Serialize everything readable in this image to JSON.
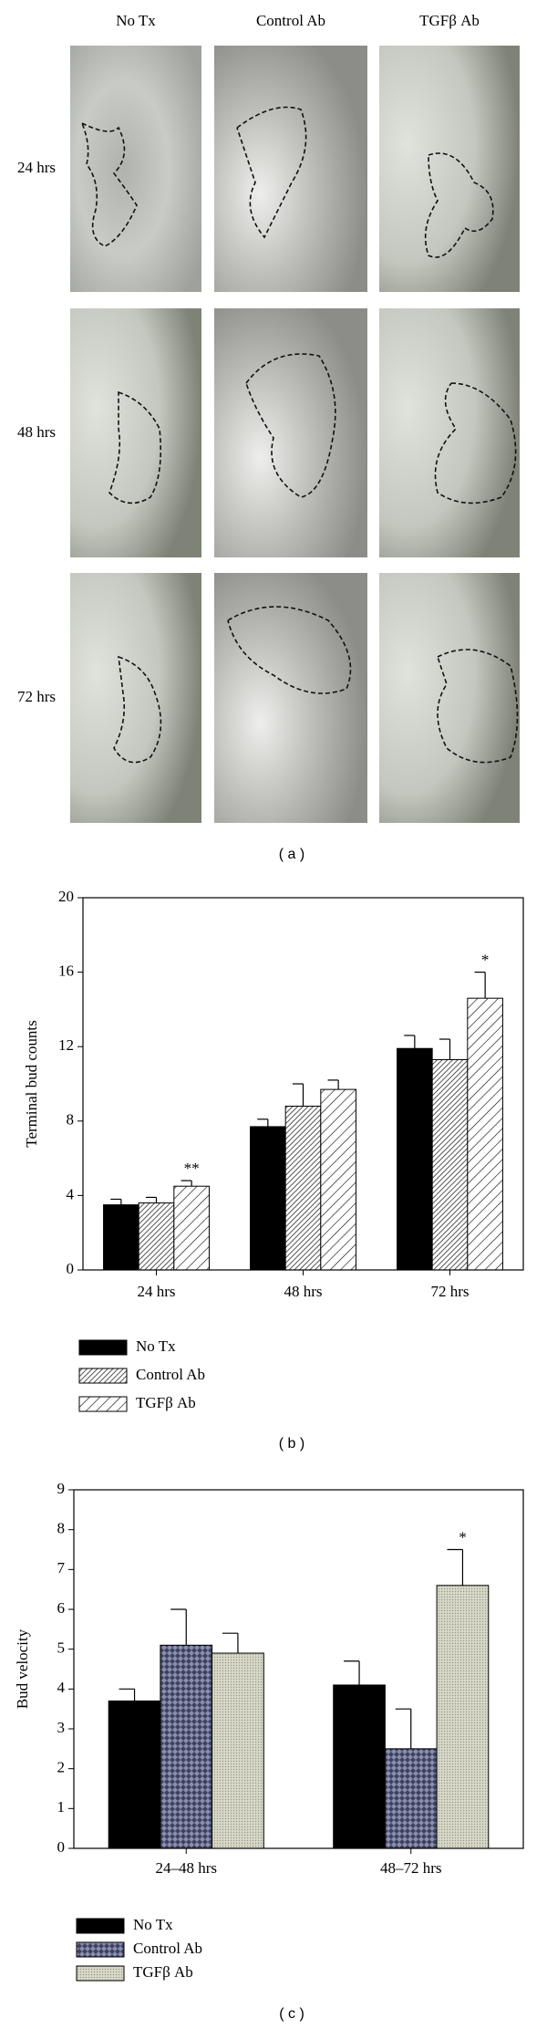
{
  "panel_a": {
    "columns": [
      "No Tx",
      "Control Ab",
      "TGFβ Ab"
    ],
    "rows": [
      "24 hrs",
      "48 hrs",
      "72 hrs"
    ],
    "caption": "( a )"
  },
  "chart_data": [
    {
      "type": "bar",
      "ylabel": "Terminal bud counts",
      "caption": "( b )",
      "categories": [
        "24 hrs",
        "48 hrs",
        "72 hrs"
      ],
      "ylim": [
        0,
        20
      ],
      "yticks": [
        0,
        4,
        8,
        12,
        16,
        20
      ],
      "series": [
        {
          "name": "No Tx",
          "color": "#000000",
          "pattern": "solid",
          "values": [
            3.5,
            7.7,
            11.9
          ],
          "errors": [
            0.3,
            0.4,
            0.7
          ],
          "annotations": [
            null,
            null,
            null
          ]
        },
        {
          "name": "Control Ab",
          "color": "#555555",
          "pattern": "dense-hatch",
          "values": [
            3.6,
            8.8,
            11.3
          ],
          "errors": [
            0.3,
            1.2,
            1.1
          ],
          "annotations": [
            null,
            null,
            null
          ]
        },
        {
          "name": "TGFβ Ab",
          "color": "#000000",
          "pattern": "hatch",
          "values": [
            4.5,
            9.7,
            14.6
          ],
          "errors": [
            0.3,
            0.5,
            1.4
          ],
          "annotations": [
            "**",
            null,
            "*"
          ]
        }
      ]
    },
    {
      "type": "bar",
      "ylabel": "Bud velocity",
      "caption": "( c )",
      "categories": [
        "24–48 hrs",
        "48–72 hrs"
      ],
      "ylim": [
        0,
        9
      ],
      "yticks": [
        0,
        1,
        2,
        3,
        4,
        5,
        6,
        7,
        8,
        9
      ],
      "series": [
        {
          "name": "No Tx",
          "color": "#000000",
          "pattern": "solid",
          "values": [
            3.7,
            4.1
          ],
          "errors": [
            0.3,
            0.6
          ],
          "annotations": [
            null,
            null
          ]
        },
        {
          "name": "Control Ab",
          "color": "#4a4f6e",
          "pattern": "weave",
          "values": [
            5.1,
            2.5
          ],
          "errors": [
            0.9,
            1.0
          ],
          "annotations": [
            null,
            null
          ]
        },
        {
          "name": "TGFβ Ab",
          "color": "#c9c9b8",
          "pattern": "dots",
          "values": [
            4.9,
            6.6
          ],
          "errors": [
            0.5,
            0.9
          ],
          "annotations": [
            null,
            "*"
          ]
        }
      ]
    }
  ]
}
